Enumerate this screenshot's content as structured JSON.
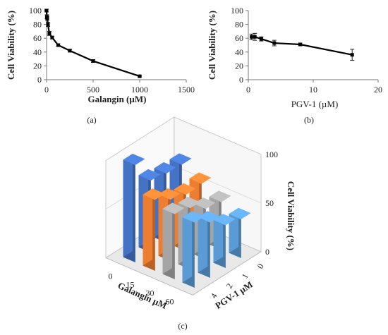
{
  "chart_data": [
    {
      "type": "line",
      "panel_label": "(a)",
      "xlabel": "Galangin (µM)",
      "ylabel": "Cell Viability (%)",
      "xlim": [
        0,
        1500
      ],
      "ylim": [
        0,
        100
      ],
      "xticks": [
        "0",
        "500",
        "1000",
        "1500"
      ],
      "yticks": [
        "0",
        "20",
        "40",
        "60",
        "80",
        "100"
      ],
      "x": [
        0,
        3,
        7.5,
        15,
        30,
        60,
        125,
        250,
        500,
        1000
      ],
      "y": [
        100,
        91,
        89,
        80,
        67,
        61,
        50,
        42,
        27,
        5
      ],
      "err": [
        2,
        3,
        3,
        3,
        3,
        2,
        2,
        2,
        2,
        1
      ],
      "color": "#000000"
    },
    {
      "type": "line",
      "panel_label": "(b)",
      "xlabel": "PGV-1 (µM)",
      "ylabel": "Cell Viability (%)",
      "xlim": [
        0,
        20
      ],
      "ylim": [
        0,
        100
      ],
      "xticks": [
        "0",
        "10",
        "20"
      ],
      "yticks": [
        "0",
        "20",
        "40",
        "60",
        "80",
        "100"
      ],
      "x": [
        0.5,
        1,
        2,
        4,
        8,
        16
      ],
      "y": [
        62,
        62,
        59,
        53,
        51,
        36
      ],
      "err": [
        4,
        5,
        3,
        4,
        2,
        8
      ],
      "color": "#000000"
    },
    {
      "type": "bar3d",
      "panel_label": "(c)",
      "xlabel": "Galangin µM",
      "ylabel": "PGV-1 µM",
      "zlabel": "Cell Viability (%)",
      "zlim": [
        0,
        100
      ],
      "zticks": [
        "0",
        "50",
        "100"
      ],
      "galangin_categories": [
        "0",
        "15",
        "30",
        "60"
      ],
      "pgv_categories": [
        "0",
        "1",
        "2",
        "4"
      ],
      "series": [
        {
          "galangin": "0",
          "color": "#4472C4",
          "values": [
            70,
            71,
            74,
            100
          ]
        },
        {
          "galangin": "15",
          "color": "#ED7D31",
          "values": [
            59,
            58,
            63,
            73
          ]
        },
        {
          "galangin": "30",
          "color": "#A5A5A5",
          "values": [
            49,
            52,
            63,
            67
          ]
        },
        {
          "galangin": "60",
          "color": "#5B9BD5",
          "values": [
            40,
            44,
            57,
            67
          ]
        }
      ]
    }
  ]
}
